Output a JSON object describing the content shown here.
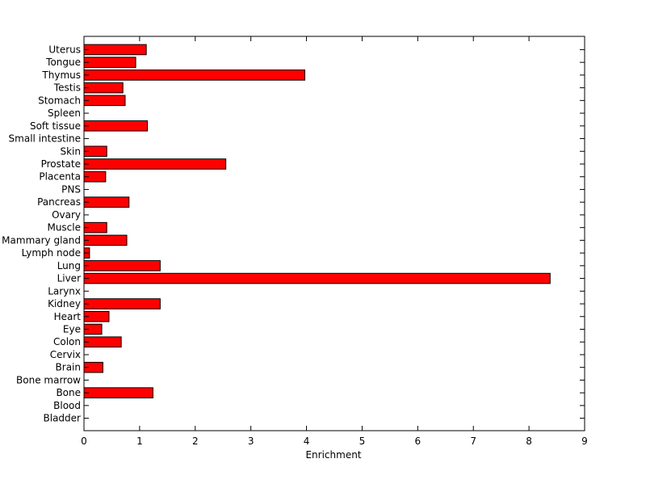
{
  "chart_data": {
    "type": "bar",
    "orientation": "horizontal",
    "title": "",
    "xlabel": "Enrichment",
    "ylabel": "",
    "xlim": [
      0,
      9
    ],
    "xticks": [
      "0",
      "1",
      "2",
      "3",
      "4",
      "5",
      "6",
      "7",
      "8",
      "9"
    ],
    "grid": false,
    "bar_color": "#ff0000",
    "categories": [
      "Bladder",
      "Blood",
      "Bone",
      "Bone marrow",
      "Brain",
      "Cervix",
      "Colon",
      "Eye",
      "Heart",
      "Kidney",
      "Larynx",
      "Liver",
      "Lung",
      "Lymph node",
      "Mammary gland",
      "Muscle",
      "Ovary",
      "Pancreas",
      "PNS",
      "Placenta",
      "Prostate",
      "Skin",
      "Small intestine",
      "Soft tissue",
      "Spleen",
      "Stomach",
      "Testis",
      "Thymus",
      "Tongue",
      "Uterus"
    ],
    "values": [
      0,
      0,
      1.24,
      0,
      0.34,
      0,
      0.67,
      0.32,
      0.45,
      1.37,
      0,
      8.38,
      1.37,
      0.1,
      0.77,
      0.41,
      0,
      0.81,
      0,
      0.39,
      2.55,
      0.41,
      0,
      1.14,
      0,
      0.74,
      0.7,
      3.97,
      0.93,
      1.12
    ]
  }
}
